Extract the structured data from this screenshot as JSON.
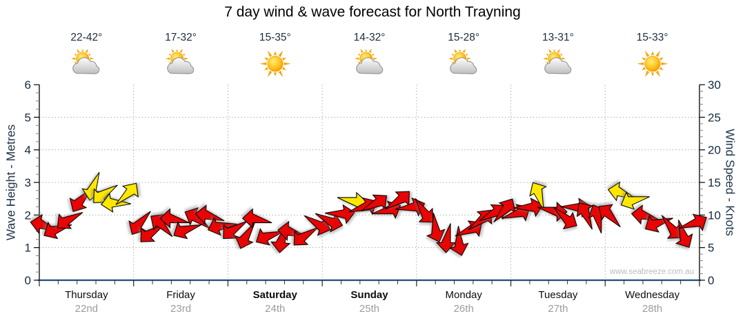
{
  "title": "7 day wind & wave forecast for North Trayning",
  "watermark": "www.seabreeze.com.au",
  "axes": {
    "left_label": "Wave Height - Metres",
    "right_label": "Wind Speed - Knots",
    "left_ticks": [
      0,
      1,
      2,
      3,
      4,
      5,
      6
    ],
    "right_ticks": [
      0,
      5,
      10,
      15,
      20,
      25,
      30
    ]
  },
  "days": [
    {
      "name": "Thursday",
      "date": "22nd",
      "temp": "22-42°",
      "icon": "partly-cloudy",
      "weekend": false
    },
    {
      "name": "Friday",
      "date": "23rd",
      "temp": "17-32°",
      "icon": "partly-cloudy",
      "weekend": false
    },
    {
      "name": "Saturday",
      "date": "24th",
      "temp": "15-35°",
      "icon": "sunny",
      "weekend": true
    },
    {
      "name": "Sunday",
      "date": "25th",
      "temp": "14-32°",
      "icon": "partly-cloudy",
      "weekend": true
    },
    {
      "name": "Monday",
      "date": "26th",
      "temp": "15-28°",
      "icon": "partly-cloudy",
      "weekend": false
    },
    {
      "name": "Tuesday",
      "date": "27th",
      "temp": "13-31°",
      "icon": "partly-cloudy",
      "weekend": false
    },
    {
      "name": "Wednesday",
      "date": "28th",
      "temp": "15-33°",
      "icon": "sunny",
      "weekend": false
    }
  ],
  "colors": {
    "arrow_red": "#e80505",
    "arrow_yellow": "#ffe800",
    "arrow_outline": "#000000",
    "bottom_axis": "#1f4e79",
    "side_axis": "#000000",
    "grid": "#ababab",
    "tick_label": "#15293d"
  },
  "chart_data": {
    "type": "scatter",
    "title": "7 day wind & wave forecast for North Trayning",
    "x_categories": [
      "Thursday 22nd",
      "Friday 23rd",
      "Saturday 24th",
      "Sunday 25th",
      "Monday 26th",
      "Tuesday 27th",
      "Wednesday 28th"
    ],
    "y_left": {
      "label": "Wave Height - Metres",
      "min": 0,
      "max": 6,
      "grid": "dotted"
    },
    "y_right": {
      "label": "Wind Speed - Knots",
      "min": 0,
      "max": 30,
      "grid": "dotted"
    },
    "arrows_per_day": 8,
    "arrow_fields": "wind_speed_knots, pointing_direction_deg_clockwise_from_east, color(r=red,y=yellow)",
    "arrows": [
      [
        8.5,
        190,
        "r"
      ],
      [
        8,
        150,
        "r"
      ],
      [
        9.5,
        140,
        "r"
      ],
      [
        12.5,
        120,
        "r"
      ],
      [
        14.5,
        100,
        "y"
      ],
      [
        13.5,
        135,
        "y"
      ],
      [
        12,
        170,
        "y"
      ],
      [
        13,
        305,
        "y"
      ],
      [
        9,
        120,
        "r"
      ],
      [
        7.5,
        135,
        "r"
      ],
      [
        8.5,
        215,
        "r"
      ],
      [
        9.5,
        180,
        "r"
      ],
      [
        8,
        150,
        "r"
      ],
      [
        9.5,
        205,
        "r"
      ],
      [
        10,
        185,
        "r"
      ],
      [
        8.5,
        160,
        "r"
      ],
      [
        8,
        135,
        "r"
      ],
      [
        7,
        110,
        "r"
      ],
      [
        9.5,
        180,
        "r"
      ],
      [
        7,
        150,
        "r"
      ],
      [
        6.5,
        95,
        "r"
      ],
      [
        7.5,
        185,
        "r"
      ],
      [
        7,
        135,
        "r"
      ],
      [
        8.5,
        20,
        "r"
      ],
      [
        9,
        15,
        "r"
      ],
      [
        10,
        350,
        "r"
      ],
      [
        12,
        0,
        "y"
      ],
      [
        11,
        330,
        "r"
      ],
      [
        11.5,
        320,
        "r"
      ],
      [
        10.5,
        335,
        "r"
      ],
      [
        12,
        315,
        "r"
      ],
      [
        11,
        340,
        "r"
      ],
      [
        10.5,
        45,
        "r"
      ],
      [
        8,
        70,
        "r"
      ],
      [
        6.5,
        90,
        "r"
      ],
      [
        6,
        75,
        "r"
      ],
      [
        7.5,
        325,
        "r"
      ],
      [
        9,
        310,
        "r"
      ],
      [
        10,
        320,
        "r"
      ],
      [
        10.5,
        300,
        "r"
      ],
      [
        10,
        330,
        "r"
      ],
      [
        11,
        345,
        "r"
      ],
      [
        13,
        240,
        "y"
      ],
      [
        10.5,
        0,
        "r"
      ],
      [
        9.5,
        30,
        "r"
      ],
      [
        11,
        350,
        "r"
      ],
      [
        10,
        235,
        "r"
      ],
      [
        9.5,
        245,
        "r"
      ],
      [
        10,
        215,
        "r"
      ],
      [
        13.5,
        190,
        "y"
      ],
      [
        12.5,
        155,
        "y"
      ],
      [
        10,
        185,
        "r"
      ],
      [
        9,
        150,
        "r"
      ],
      [
        8,
        40,
        "r"
      ],
      [
        7,
        60,
        "r"
      ],
      [
        8.5,
        330,
        "r"
      ]
    ]
  }
}
